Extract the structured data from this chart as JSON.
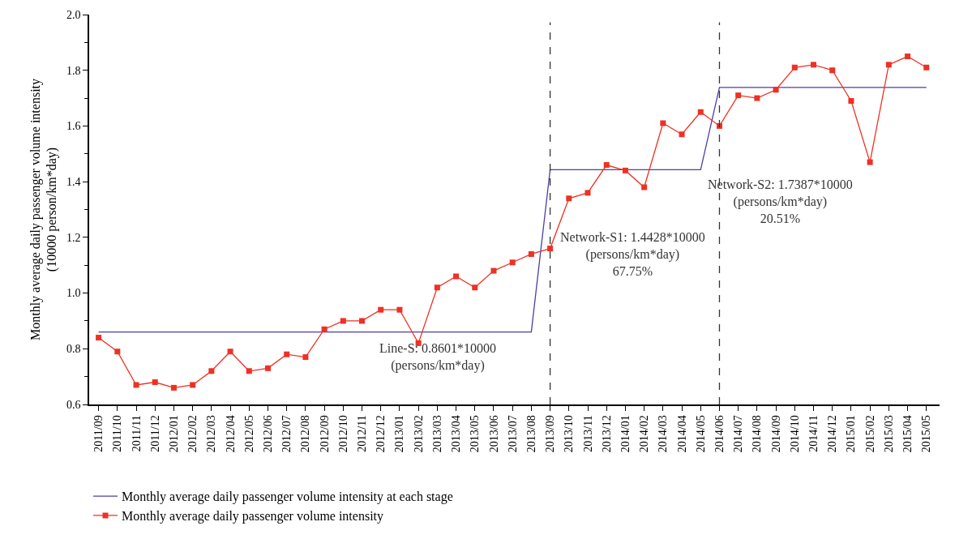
{
  "chart_data": {
    "type": "line",
    "ylabel": "Monthly average daily passenger volume intensity\n(10000 person/km*day)",
    "categories": [
      "2011/09",
      "2011/10",
      "2011/11",
      "2011/12",
      "2012/01",
      "2012/02",
      "2012/03",
      "2012/04",
      "2012/05",
      "2012/06",
      "2012/07",
      "2012/08",
      "2012/09",
      "2012/10",
      "2012/11",
      "2012/12",
      "2013/01",
      "2013/02",
      "2013/03",
      "2013/04",
      "2013/05",
      "2013/06",
      "2013/07",
      "2013/08",
      "2013/09",
      "2013/10",
      "2013/11",
      "2013/12",
      "2014/01",
      "2014/02",
      "2014/03",
      "2014/04",
      "2014/05",
      "2014/06",
      "2014/07",
      "2014/08",
      "2014/09",
      "2014/10",
      "2014/11",
      "2014/12",
      "2015/01",
      "2015/02",
      "2015/03",
      "2015/04",
      "2015/05"
    ],
    "series": [
      {
        "name": "Monthly average daily passenger volume intensity at each stage",
        "color": "#4a3fa6",
        "marker": "none",
        "values": [
          0.8601,
          0.8601,
          0.8601,
          0.8601,
          0.8601,
          0.8601,
          0.8601,
          0.8601,
          0.8601,
          0.8601,
          0.8601,
          0.8601,
          0.8601,
          0.8601,
          0.8601,
          0.8601,
          0.8601,
          0.8601,
          0.8601,
          0.8601,
          0.8601,
          0.8601,
          0.8601,
          0.8601,
          1.4428,
          1.4428,
          1.4428,
          1.4428,
          1.4428,
          1.4428,
          1.4428,
          1.4428,
          1.4428,
          1.7387,
          1.7387,
          1.7387,
          1.7387,
          1.7387,
          1.7387,
          1.7387,
          1.7387,
          1.7387,
          1.7387,
          1.7387,
          1.7387
        ]
      },
      {
        "name": "Monthly average daily passenger volume intensity",
        "color": "#ee3124",
        "marker": "square",
        "values": [
          0.84,
          0.79,
          0.67,
          0.68,
          0.66,
          0.67,
          0.72,
          0.79,
          0.72,
          0.73,
          0.78,
          0.77,
          0.87,
          0.9,
          0.9,
          0.94,
          0.94,
          0.82,
          1.02,
          1.06,
          1.02,
          1.08,
          1.11,
          1.14,
          1.16,
          1.34,
          1.36,
          1.46,
          1.44,
          1.38,
          1.61,
          1.57,
          1.65,
          1.6,
          1.71,
          1.7,
          1.73,
          1.81,
          1.82,
          1.8,
          1.69,
          1.47,
          1.82,
          1.85,
          1.81
        ]
      }
    ],
    "ylim": [
      0.6,
      2.0
    ],
    "yticks": [
      0.6,
      0.8,
      {
        "value": 1,
        "label": "1.0"
      },
      1.2,
      1.4,
      1.6,
      1.8,
      {
        "value": 2,
        "label": "2.0"
      }
    ],
    "ref_lines": [
      {
        "axis": "x",
        "value": "2013/09",
        "color": "#333333",
        "line_style": "dashed"
      },
      {
        "axis": "x",
        "value": "2014/06",
        "color": "#333333",
        "line_style": "dashed"
      }
    ],
    "annotations": [
      "Line-S: 0.8601*10000\n(persons/km*day)",
      "Network-S1: 1.4428*10000\n(persons/km*day)\n67.75%",
      "Network-S2: 1.7387*10000\n(persons/km*day)\n20.51%"
    ],
    "legend": "bottom left"
  }
}
